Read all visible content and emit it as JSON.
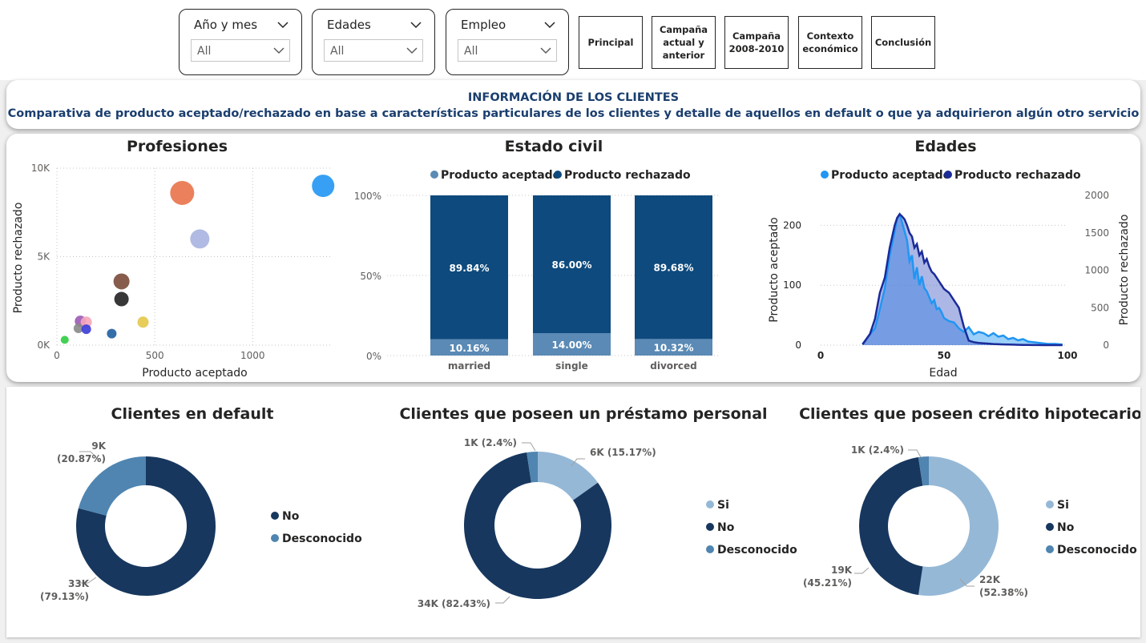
{
  "slicers": [
    {
      "label": "Año y mes",
      "value": "All"
    },
    {
      "label": "Edades",
      "value": "All"
    },
    {
      "label": "Empleo",
      "value": "All"
    }
  ],
  "nav": {
    "principal": "Principal",
    "campana_actual": "Campaña actual y anterior",
    "campana_2008": "Campaña 2008-2010",
    "contexto": "Contexto económico",
    "conclusion": "Conclusión"
  },
  "header": {
    "title": "INFORMACIÓN DE LOS CLIENTES",
    "subtitle": "Comparativa de producto aceptado/rechazado en base a características particulares de los clientes y detalle de aquellos en default o que ya adquirieron algún otro servicio"
  },
  "colors": {
    "accepted": "#5a8ab5",
    "rejected": "#0e4a7d",
    "accepted_light": "#2196f3",
    "rejected_dark": "#1a2b99",
    "donut_dark": "#17375e",
    "donut_mid": "#4f85b0",
    "donut_light": "#95b8d6"
  },
  "chart_data": [
    {
      "type": "scatter",
      "title": "Profesiones",
      "xlabel": "Producto aceptado",
      "ylabel": "Producto rechazado",
      "xlim": [
        0,
        1400
      ],
      "ylim": [
        0,
        10000
      ],
      "xticks": [
        "0",
        "500",
        "1000"
      ],
      "yticks": [
        "0K",
        "5K",
        "10K"
      ],
      "points": [
        {
          "x": 1360,
          "y": 9000,
          "size": 14,
          "color": "#2196f3"
        },
        {
          "x": 640,
          "y": 8600,
          "size": 15,
          "color": "#e8734a"
        },
        {
          "x": 730,
          "y": 6000,
          "size": 12,
          "color": "#a9b2e0"
        },
        {
          "x": 330,
          "y": 3600,
          "size": 10,
          "color": "#7a4a3a"
        },
        {
          "x": 330,
          "y": 2600,
          "size": 9,
          "color": "#222222"
        },
        {
          "x": 440,
          "y": 1300,
          "size": 7,
          "color": "#e3c84a"
        },
        {
          "x": 120,
          "y": 1350,
          "size": 7,
          "color": "#9b59b6"
        },
        {
          "x": 150,
          "y": 1300,
          "size": 7,
          "color": "#f4a6b9"
        },
        {
          "x": 110,
          "y": 950,
          "size": 6,
          "color": "#888888"
        },
        {
          "x": 150,
          "y": 900,
          "size": 6,
          "color": "#3b3bd9"
        },
        {
          "x": 280,
          "y": 650,
          "size": 6,
          "color": "#1f5fa0"
        },
        {
          "x": 40,
          "y": 300,
          "size": 5,
          "color": "#2ecc40"
        }
      ]
    },
    {
      "type": "bar",
      "title": "Estado civil",
      "stacked": "100%",
      "categories": [
        "married",
        "single",
        "divorced"
      ],
      "yticks": [
        "0%",
        "50%",
        "100%"
      ],
      "series": [
        {
          "name": "Producto aceptado",
          "values": [
            10.16,
            14.0,
            10.32
          ],
          "labels": [
            "10.16%",
            "14.00%",
            "10.32%"
          ]
        },
        {
          "name": "Producto rechazado",
          "values": [
            89.84,
            86.0,
            89.68
          ],
          "labels": [
            "89.84%",
            "86.00%",
            "89.68%"
          ]
        }
      ]
    },
    {
      "type": "area",
      "title": "Edades",
      "xlabel": "Edad",
      "ylabel_left": "Producto aceptado",
      "ylabel_right": "Producto rechazado",
      "xticks": [
        "0",
        "50",
        "100"
      ],
      "yticks_left": [
        "0",
        "100",
        "200"
      ],
      "yticks_right": [
        "0",
        "500",
        "1000",
        "1500",
        "2000"
      ],
      "xlim": [
        0,
        100
      ],
      "ylim_left": [
        0,
        250
      ],
      "ylim_right": [
        0,
        2000
      ],
      "x": [
        17,
        20,
        22,
        24,
        26,
        28,
        30,
        31,
        32,
        33,
        34,
        35,
        36,
        37,
        38,
        39,
        40,
        41,
        42,
        43,
        44,
        45,
        46,
        47,
        48,
        49,
        50,
        52,
        54,
        56,
        58,
        60,
        62,
        64,
        66,
        68,
        70,
        72,
        74,
        76,
        78,
        80,
        82,
        84,
        86,
        88,
        90,
        92,
        95,
        98
      ],
      "series": [
        {
          "name": "Producto aceptado",
          "axis": "left",
          "values": [
            2,
            18,
            28,
            60,
            95,
            150,
            190,
            212,
            218,
            205,
            190,
            175,
            140,
            150,
            110,
            130,
            100,
            115,
            95,
            90,
            80,
            70,
            75,
            60,
            62,
            55,
            45,
            40,
            38,
            28,
            22,
            30,
            18,
            22,
            20,
            15,
            20,
            14,
            16,
            10,
            12,
            8,
            10,
            6,
            5,
            4,
            3,
            2,
            2,
            1
          ]
        },
        {
          "name": "Producto rechazado",
          "axis": "right",
          "values": [
            10,
            150,
            350,
            700,
            900,
            1300,
            1600,
            1700,
            1750,
            1720,
            1680,
            1600,
            1500,
            1450,
            1300,
            1350,
            1200,
            1250,
            1100,
            1150,
            1050,
            980,
            950,
            900,
            850,
            800,
            750,
            700,
            600,
            500,
            250,
            60,
            40,
            30,
            25,
            20,
            15,
            12,
            10,
            8,
            6,
            4,
            3,
            2,
            1,
            1,
            0,
            0,
            0,
            0
          ]
        }
      ]
    },
    {
      "type": "pie",
      "title": "Clientes en default",
      "legend": [
        "No",
        "Desconocido"
      ],
      "slices": [
        {
          "name": "Desconocido",
          "value": 20.87,
          "label": "9K",
          "pct": "(20.87%)"
        },
        {
          "name": "No",
          "value": 79.13,
          "label": "33K",
          "pct": "(79.13%)"
        }
      ]
    },
    {
      "type": "pie",
      "title": "Clientes que poseen un préstamo personal",
      "legend": [
        "Si",
        "No",
        "Desconocido"
      ],
      "slices": [
        {
          "name": "Si",
          "value": 15.17,
          "label": "6K (15.17%)"
        },
        {
          "name": "No",
          "value": 82.43,
          "label": "34K (82.43%)"
        },
        {
          "name": "Desconocido",
          "value": 2.4,
          "label": "1K (2.4%)"
        }
      ]
    },
    {
      "type": "pie",
      "title": "Clientes que poseen crédito hipotecario",
      "legend": [
        "Si",
        "No",
        "Desconocido"
      ],
      "slices": [
        {
          "name": "Si",
          "value": 52.38,
          "label": "22K",
          "pct": "(52.38%)"
        },
        {
          "name": "No",
          "value": 45.21,
          "label": "19K",
          "pct": "(45.21%)"
        },
        {
          "name": "Desconocido",
          "value": 2.4,
          "label": "1K (2.4%)"
        }
      ]
    }
  ]
}
